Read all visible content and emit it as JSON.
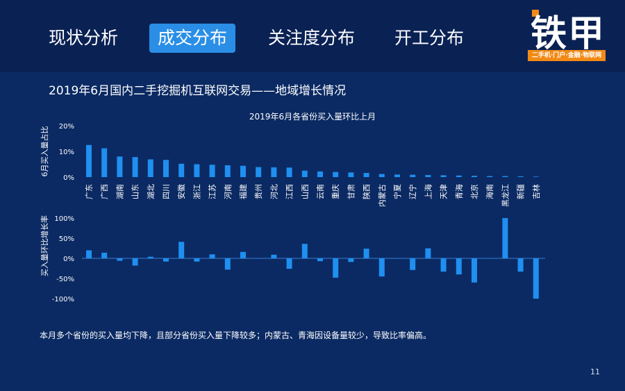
{
  "nav": {
    "tabs": [
      {
        "label": "现状分析",
        "active": false
      },
      {
        "label": "成交分布",
        "active": true
      },
      {
        "label": "关注度分布",
        "active": false
      },
      {
        "label": "开工分布",
        "active": false
      }
    ]
  },
  "logo": {
    "name": "铁甲",
    "tagline": "二手机·门户·金融·物联网"
  },
  "page_subtitle": "2019年6月国内二手挖掘机互联网交易——地域增长情况",
  "footnote": "本月多个省份的买入量均下降，且部分省份买入量下降较多；内蒙古、青海因设备量较少，导致比率偏高。",
  "page_number": "11",
  "colors": {
    "accent": "#2a8ee6",
    "bar": "#1f8ff0",
    "background": "#0b2a63",
    "logo_orange": "#f28a16"
  },
  "chart_data": [
    {
      "type": "bar",
      "title": "2019年6月各省份买入量环比上月",
      "ylabel": "6月买入量占比",
      "ylim": [
        0,
        20
      ],
      "yticks": [
        "0%",
        "10%",
        "20%"
      ],
      "categories": [
        "广东",
        "广西",
        "湖南",
        "山东",
        "湖北",
        "四川",
        "安徽",
        "浙江",
        "江苏",
        "河南",
        "福建",
        "贵州",
        "河北",
        "江西",
        "山西",
        "云南",
        "重庆",
        "甘肃",
        "陕西",
        "内蒙古",
        "宁夏",
        "辽宁",
        "上海",
        "天津",
        "青海",
        "北京",
        "海南",
        "黑龙江",
        "新疆",
        "吉林"
      ],
      "values": [
        12.5,
        11.2,
        8.0,
        7.8,
        6.9,
        6.7,
        5.2,
        5.0,
        4.8,
        4.6,
        4.4,
        3.9,
        3.8,
        3.7,
        2.5,
        2.2,
        2.0,
        1.8,
        1.6,
        1.2,
        1.0,
        0.9,
        0.8,
        0.7,
        0.6,
        0.5,
        0.4,
        0.4,
        0.3,
        0.2
      ]
    },
    {
      "type": "bar",
      "ylabel": "买入量环比增长率",
      "ylim": [
        -100,
        100
      ],
      "yticks": [
        "-100%",
        "-50%",
        "0%",
        "50%",
        "100%"
      ],
      "categories": [
        "广东",
        "广西",
        "湖南",
        "山东",
        "湖北",
        "四川",
        "安徽",
        "浙江",
        "江苏",
        "河南",
        "福建",
        "贵州",
        "河北",
        "江西",
        "山西",
        "云南",
        "重庆",
        "甘肃",
        "陕西",
        "内蒙古",
        "宁夏",
        "辽宁",
        "上海",
        "天津",
        "青海",
        "北京",
        "海南",
        "黑龙江",
        "新疆",
        "吉林"
      ],
      "values": [
        20,
        14,
        -6,
        -18,
        4,
        -8,
        41,
        -8,
        10,
        -28,
        16,
        0,
        9,
        -26,
        36,
        -7,
        -48,
        -9,
        24,
        -45,
        0,
        -29,
        25,
        -33,
        -40,
        -60,
        0,
        100,
        -33,
        -100
      ]
    }
  ]
}
